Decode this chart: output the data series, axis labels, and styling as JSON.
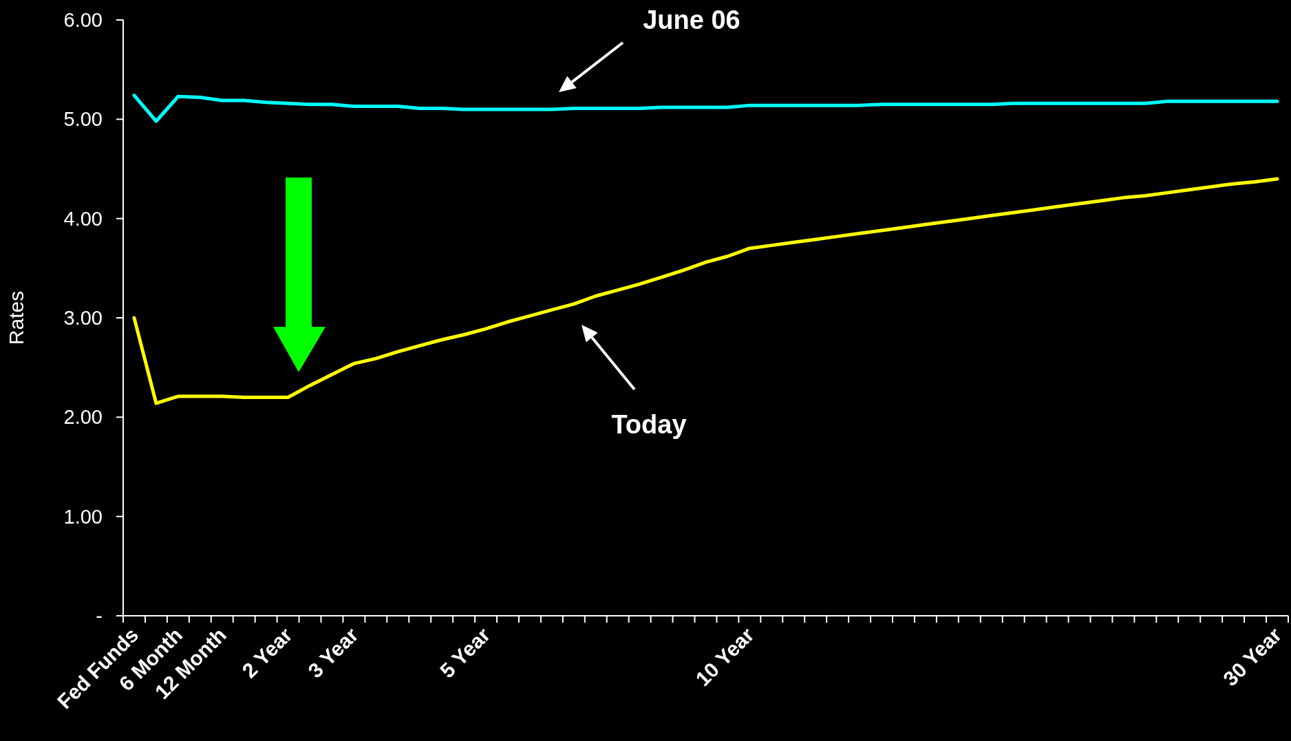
{
  "chart_data": {
    "type": "line",
    "ylabel": "Rates",
    "categories": [
      "Fed Funds",
      null,
      "6 Month",
      null,
      "12 Month",
      null,
      null,
      "2 Year",
      null,
      null,
      "3 Year",
      null,
      null,
      null,
      null,
      null,
      "5 Year",
      null,
      null,
      null,
      null,
      null,
      null,
      null,
      null,
      null,
      null,
      null,
      "10 Year",
      null,
      null,
      null,
      null,
      null,
      null,
      null,
      null,
      null,
      null,
      null,
      null,
      null,
      null,
      null,
      null,
      null,
      null,
      null,
      null,
      null,
      null,
      null,
      "30 Year"
    ],
    "series": [
      {
        "color": "#00ffff",
        "values": [
          5.24,
          4.98,
          5.23,
          5.22,
          5.19,
          5.19,
          5.17,
          5.16,
          5.15,
          5.15,
          5.13,
          5.13,
          5.13,
          5.11,
          5.11,
          5.1,
          5.1,
          5.1,
          5.1,
          5.1,
          5.11,
          5.11,
          5.11,
          5.11,
          5.12,
          5.12,
          5.12,
          5.12,
          5.14,
          5.14,
          5.14,
          5.14,
          5.14,
          5.14,
          5.15,
          5.15,
          5.15,
          5.15,
          5.15,
          5.15,
          5.16,
          5.16,
          5.16,
          5.16,
          5.16,
          5.16,
          5.16,
          5.18,
          5.18,
          5.18,
          5.18,
          5.18,
          5.18
        ]
      },
      {
        "color": "#ffff00",
        "values": [
          3.0,
          2.14,
          2.21,
          2.21,
          2.21,
          2.2,
          2.2,
          2.2,
          2.32,
          2.43,
          2.54,
          2.59,
          2.66,
          2.72,
          2.78,
          2.83,
          2.89,
          2.96,
          3.02,
          3.08,
          3.14,
          3.22,
          3.28,
          3.34,
          3.41,
          3.48,
          3.56,
          3.62,
          3.7,
          3.73,
          3.76,
          3.79,
          3.82,
          3.85,
          3.88,
          3.91,
          3.94,
          3.97,
          4.0,
          4.03,
          4.06,
          4.09,
          4.12,
          4.15,
          4.18,
          4.21,
          4.23,
          4.26,
          4.29,
          4.32,
          4.35,
          4.37,
          4.4
        ]
      }
    ],
    "ylim": [
      0,
      6
    ],
    "yticks": [
      {
        "value": 0,
        "label": "-"
      },
      {
        "value": 1,
        "label": "1.00"
      },
      {
        "value": 2,
        "label": "2.00"
      },
      {
        "value": 3,
        "label": "3.00"
      },
      {
        "value": 4,
        "label": "4.00"
      },
      {
        "value": 5,
        "label": "5.00"
      },
      {
        "value": 6,
        "label": "6.00"
      }
    ],
    "annotations": [
      "June 06",
      "Today"
    ],
    "grid": false,
    "marker": "none",
    "line_style": "solid"
  }
}
